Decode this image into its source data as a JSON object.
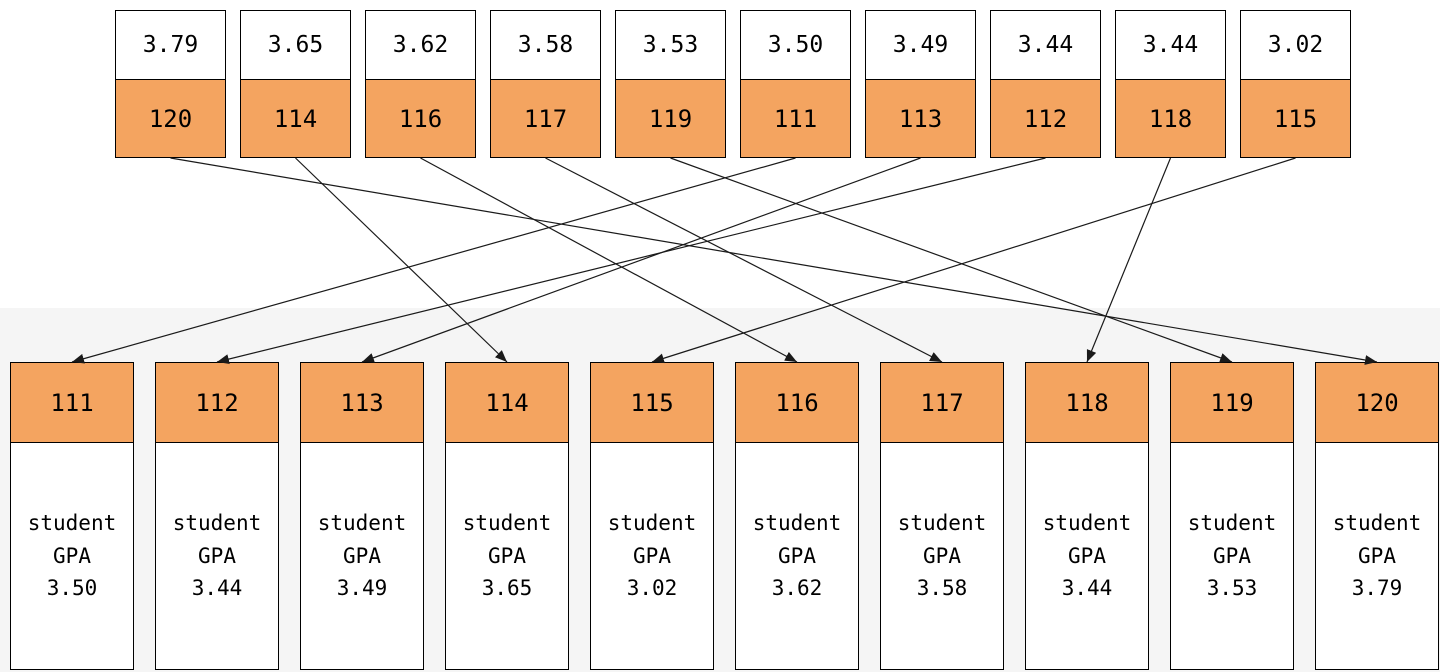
{
  "colors": {
    "cell_fill": "#f4a460",
    "border": "#000000",
    "lower_band": "#f5f5f5",
    "arrow": "#1a1a1a"
  },
  "top_row": [
    {
      "gpa": "3.79",
      "id": "120"
    },
    {
      "gpa": "3.65",
      "id": "114"
    },
    {
      "gpa": "3.62",
      "id": "116"
    },
    {
      "gpa": "3.58",
      "id": "117"
    },
    {
      "gpa": "3.53",
      "id": "119"
    },
    {
      "gpa": "3.50",
      "id": "111"
    },
    {
      "gpa": "3.49",
      "id": "113"
    },
    {
      "gpa": "3.44",
      "id": "112"
    },
    {
      "gpa": "3.44",
      "id": "118"
    },
    {
      "gpa": "3.02",
      "id": "115"
    }
  ],
  "bottom_row": [
    {
      "id": "111",
      "text_line1": "student",
      "text_line2": "GPA",
      "gpa": "3.50"
    },
    {
      "id": "112",
      "text_line1": "student",
      "text_line2": "GPA",
      "gpa": "3.44"
    },
    {
      "id": "113",
      "text_line1": "student",
      "text_line2": "GPA",
      "gpa": "3.49"
    },
    {
      "id": "114",
      "text_line1": "student",
      "text_line2": "GPA",
      "gpa": "3.65"
    },
    {
      "id": "115",
      "text_line1": "student",
      "text_line2": "GPA",
      "gpa": "3.02"
    },
    {
      "id": "116",
      "text_line1": "student",
      "text_line2": "GPA",
      "gpa": "3.62"
    },
    {
      "id": "117",
      "text_line1": "student",
      "text_line2": "GPA",
      "gpa": "3.58"
    },
    {
      "id": "118",
      "text_line1": "student",
      "text_line2": "GPA",
      "gpa": "3.44"
    },
    {
      "id": "119",
      "text_line1": "student",
      "text_line2": "GPA",
      "gpa": "3.53"
    },
    {
      "id": "120",
      "text_line1": "student",
      "text_line2": "GPA",
      "gpa": "3.79"
    }
  ],
  "connections": [
    {
      "from": "120",
      "to": "120"
    },
    {
      "from": "114",
      "to": "114"
    },
    {
      "from": "116",
      "to": "116"
    },
    {
      "from": "117",
      "to": "117"
    },
    {
      "from": "119",
      "to": "119"
    },
    {
      "from": "111",
      "to": "111"
    },
    {
      "from": "113",
      "to": "113"
    },
    {
      "from": "112",
      "to": "112"
    },
    {
      "from": "118",
      "to": "118"
    },
    {
      "from": "115",
      "to": "115"
    }
  ]
}
